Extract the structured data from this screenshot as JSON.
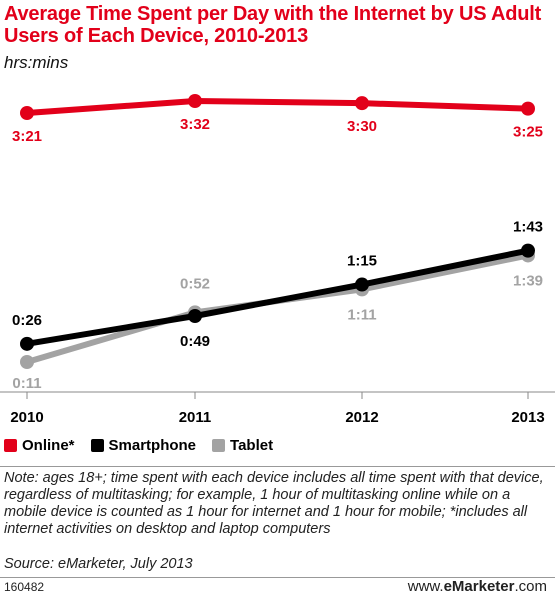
{
  "header": {
    "title": "Average Time Spent per Day with the Internet by US Adult Users of Each Device, 2010-2013",
    "subtitle": "hrs:mins"
  },
  "legend": [
    {
      "label": "Online*",
      "color": "#e2001a"
    },
    {
      "label": "Smartphone",
      "color": "#000000"
    },
    {
      "label": "Tablet",
      "color": "#a3a3a3"
    }
  ],
  "footer": {
    "note": "Note: ages 18+; time spent with each device includes all time spent with that device, regardless of multitasking; for example, 1 hour of multitasking online while on a mobile device is counted as 1 hour for internet and 1 hour for mobile; *includes all internet activities on desktop and laptop computers",
    "source": "Source: eMarketer, July 2013",
    "chart_id": "160482",
    "brand_prefix": "www.",
    "brand_name": "eMarketer",
    "brand_suffix": ".com"
  },
  "chart_data": {
    "type": "line",
    "title": "Average Time Spent per Day with the Internet by US Adult Users of Each Device, 2010-2013",
    "subtitle": "hrs:mins",
    "unit": "hrs:mins",
    "categories": [
      "2010",
      "2011",
      "2012",
      "2013"
    ],
    "series": [
      {
        "name": "Online*",
        "color": "#e2001a",
        "labels": [
          "3:21",
          "3:32",
          "3:30",
          "3:25"
        ],
        "minutes": [
          201,
          212,
          210,
          205
        ]
      },
      {
        "name": "Smartphone",
        "color": "#000000",
        "labels": [
          "0:26",
          "0:49",
          "1:15",
          "1:43"
        ],
        "minutes": [
          26,
          49,
          75,
          103
        ]
      },
      {
        "name": "Tablet",
        "color": "#a3a3a3",
        "labels": [
          "0:11",
          "0:52",
          "1:11",
          "1:39"
        ],
        "minutes": [
          11,
          52,
          71,
          99
        ]
      }
    ],
    "grid": false,
    "legend_position": "bottom-left"
  }
}
